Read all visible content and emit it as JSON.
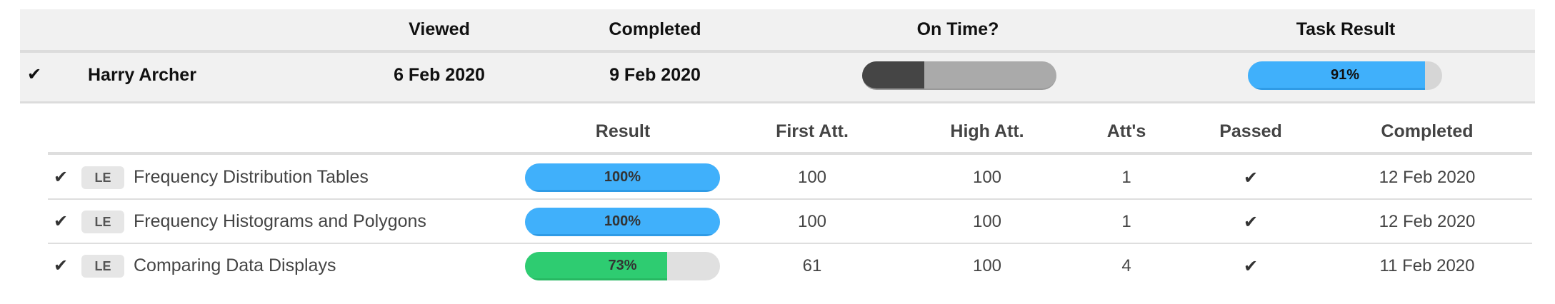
{
  "header": {
    "columns": {
      "viewed": "Viewed",
      "completed": "Completed",
      "on_time": "On Time?",
      "task_result": "Task Result"
    }
  },
  "student": {
    "check_icon": "checkmark-icon",
    "name": "Harry Archer",
    "viewed": "6 Feb 2020",
    "completed": "9 Feb 2020",
    "on_time_fraction": 0.32,
    "task_result": {
      "label": "91%",
      "value": 91
    }
  },
  "tasks": {
    "columns": {
      "result": "Result",
      "first_att": "First Att.",
      "high_att": "High Att.",
      "atts": "Att's",
      "passed": "Passed",
      "completed": "Completed"
    },
    "rows": [
      {
        "badge": "LE",
        "title": "Frequency Distribution Tables",
        "result_label": "100%",
        "result": 100,
        "first_att": "100",
        "high_att": "100",
        "atts": "1",
        "passed": true,
        "completed": "12 Feb 2020"
      },
      {
        "badge": "LE",
        "title": "Frequency Histograms and Polygons",
        "result_label": "100%",
        "result": 100,
        "first_att": "100",
        "high_att": "100",
        "atts": "1",
        "passed": true,
        "completed": "12 Feb 2020"
      },
      {
        "badge": "LE",
        "title": "Comparing Data Displays",
        "result_label": "73%",
        "result": 73,
        "first_att": "61",
        "high_att": "100",
        "atts": "4",
        "passed": true,
        "completed": "11 Feb 2020"
      }
    ]
  },
  "colors": {
    "blue": "#40b0fb",
    "green": "#2ecc71",
    "track": "#e0e0e0",
    "on_time_dark": "#454545",
    "on_time_light": "#aaaaaa"
  }
}
